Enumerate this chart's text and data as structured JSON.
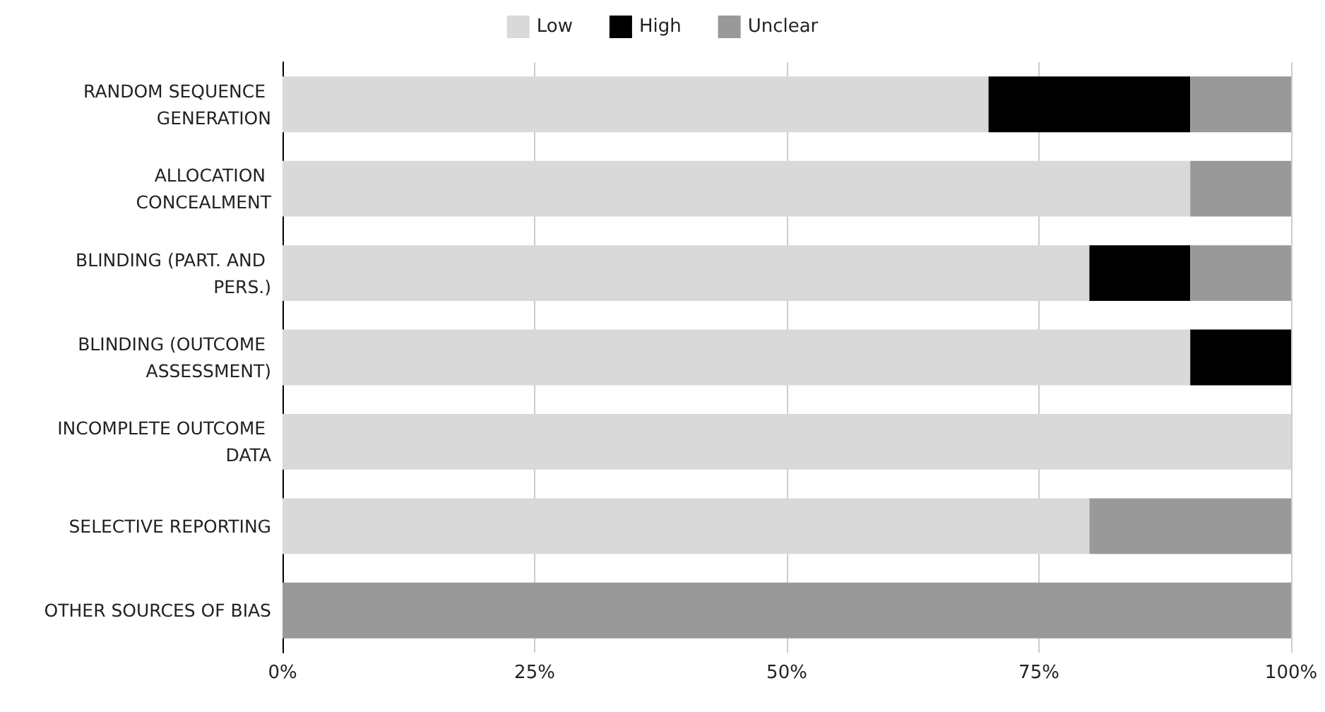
{
  "chart_data": {
    "type": "bar",
    "orientation": "horizontal",
    "stacked": true,
    "categories": [
      "RANDOM SEQUENCE GENERATION",
      "ALLOCATION CONCEALMENT",
      "BLINDING (PART. AND PERS.)",
      "BLINDING (OUTCOME ASSESSMENT)",
      "INCOMPLETE OUTCOME DATA",
      "SELECTIVE REPORTING",
      "OTHER SOURCES OF BIAS"
    ],
    "series": [
      {
        "name": "Low",
        "color": "#d9d9d9",
        "values": [
          70,
          90,
          80,
          90,
          100,
          80,
          0
        ]
      },
      {
        "name": "High",
        "color": "#000000",
        "values": [
          20,
          0,
          10,
          10,
          0,
          0,
          0
        ]
      },
      {
        "name": "Unclear",
        "color": "#999999",
        "values": [
          10,
          10,
          10,
          0,
          0,
          20,
          100
        ]
      }
    ],
    "xlim": [
      0,
      100
    ],
    "xticks": [
      {
        "value": 0,
        "label": "0%"
      },
      {
        "value": 25,
        "label": "25%"
      },
      {
        "value": 50,
        "label": "50%"
      },
      {
        "value": 75,
        "label": "75%"
      },
      {
        "value": 100,
        "label": "100%"
      }
    ],
    "grid": "x",
    "legend": "top"
  }
}
